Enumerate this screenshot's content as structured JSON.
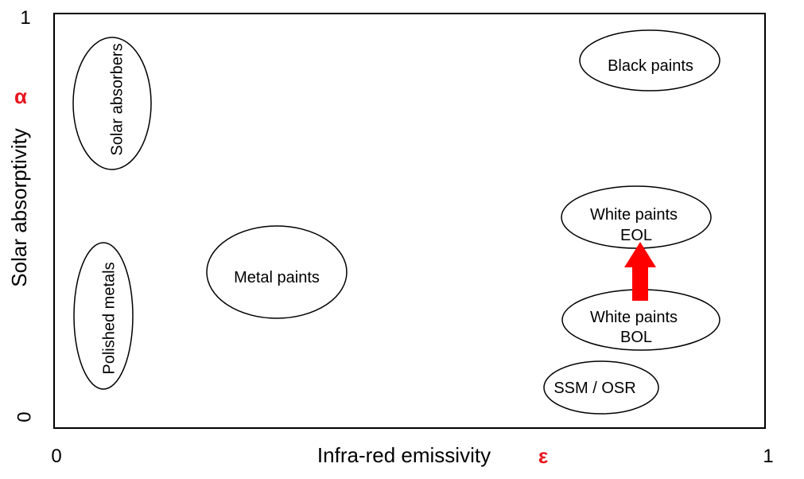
{
  "axes": {
    "y_title": "Solar absorptivity",
    "y_symbol": "α",
    "y_max": "1",
    "y_min": "0",
    "x_title": "Infra-red emissivity",
    "x_symbol": "ε",
    "x_min": "0",
    "x_max": "1"
  },
  "regions": {
    "solar_absorbers": "Solar absorbers",
    "polished_metals": "Polished metals",
    "metal_paints": "Metal paints",
    "black_paints": "Black paints",
    "white_eol_line1": "White paints",
    "white_eol_line2": "EOL",
    "white_bol_line1": "White paints",
    "white_bol_line2": "BOL",
    "ssm_osr": "SSM / OSR"
  },
  "colors": {
    "symbol": "#e8141c",
    "arrow": "#ff0000"
  }
}
